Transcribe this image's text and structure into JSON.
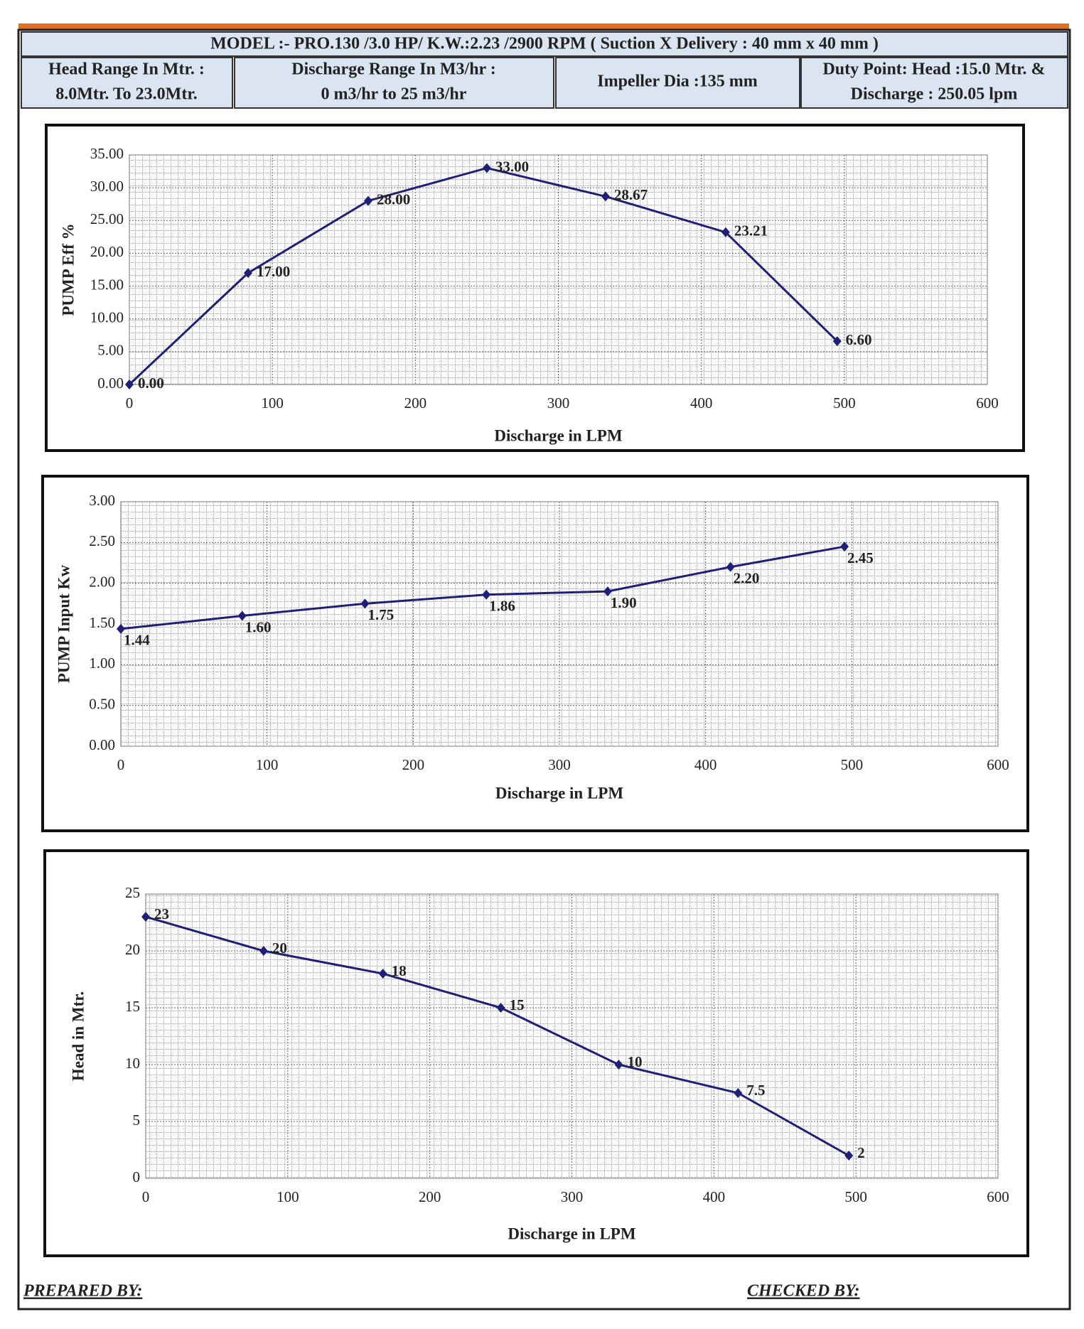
{
  "header": {
    "model": "MODEL :- PRO.130 /3.0 HP/ K.W.:2.23 /2900 RPM ( Suction X Delivery : 40 mm x 40 mm )",
    "cells": [
      [
        "Head Range In Mtr. :",
        "8.0Mtr. To 23.0Mtr."
      ],
      [
        "Discharge Range In M3/hr :",
        "0 m3/hr to 25 m3/hr"
      ],
      [
        "Impeller Dia :135 mm"
      ],
      [
        "Duty Point: Head :15.0 Mtr. &",
        "Discharge : 250.05 lpm"
      ]
    ]
  },
  "chart_data": [
    {
      "type": "line",
      "x_label": "Discharge in LPM",
      "y_label": "PUMP Eff %",
      "color": "#1f1f78",
      "x": [
        0,
        83,
        167,
        250,
        333,
        417,
        495
      ],
      "values": [
        0,
        17,
        28,
        33,
        28.67,
        23.21,
        6.6
      ],
      "value_labels": [
        "0.00",
        "17.00",
        "28.00",
        "33.00",
        "28.67",
        "23.21",
        "6.60"
      ],
      "xlim": [
        0,
        600
      ],
      "xticks": [
        0,
        100,
        200,
        300,
        400,
        500,
        600
      ],
      "ylim": [
        0,
        35
      ],
      "yticks": [
        {
          "value": 0,
          "label": "0.00"
        },
        {
          "value": 5,
          "label": "5.00"
        },
        {
          "value": 10,
          "label": "10.00"
        },
        {
          "value": 15,
          "label": "15.00"
        },
        {
          "value": 20,
          "label": "20.00"
        },
        {
          "value": 25,
          "label": "25.00"
        },
        {
          "value": 30,
          "label": "30.00"
        },
        {
          "value": 35,
          "label": "35.00"
        }
      ],
      "grid": true
    },
    {
      "type": "line",
      "x_label": "Discharge in LPM",
      "y_label": "PUMP  Input Kw",
      "color": "#1f1f78",
      "x": [
        0,
        83,
        167,
        250,
        333,
        417,
        495
      ],
      "values": [
        1.44,
        1.6,
        1.75,
        1.86,
        1.9,
        2.2,
        2.45
      ],
      "value_labels": [
        "1.44",
        "1.60",
        "1.75",
        "1.86",
        "1.90",
        "2.20",
        "2.45"
      ],
      "xlim": [
        0,
        600
      ],
      "xticks": [
        0,
        100,
        200,
        300,
        400,
        500,
        600
      ],
      "ylim": [
        0,
        3
      ],
      "yticks": [
        {
          "value": 0,
          "label": "0.00"
        },
        {
          "value": 0.5,
          "label": "0.50"
        },
        {
          "value": 1,
          "label": "1.00"
        },
        {
          "value": 1.5,
          "label": "1.50"
        },
        {
          "value": 2,
          "label": "2.00"
        },
        {
          "value": 2.5,
          "label": "2.50"
        },
        {
          "value": 3,
          "label": "3.00"
        }
      ],
      "grid": true
    },
    {
      "type": "line",
      "x_label": "Discharge in LPM",
      "y_label": "Head in Mtr.",
      "color": "#1f1f78",
      "x": [
        0,
        83,
        167,
        250,
        333,
        417,
        495
      ],
      "values": [
        23,
        20,
        18,
        15,
        10,
        7.5,
        2
      ],
      "xlim": [
        0,
        600
      ],
      "xticks": [
        0,
        100,
        200,
        300,
        400,
        500,
        600
      ],
      "ylim": [
        0,
        25
      ],
      "yticks": [
        0,
        5,
        10,
        15,
        20,
        25
      ],
      "grid": true
    }
  ],
  "footer": {
    "prepared": "PREPARED BY:",
    "checked": "CHECKED BY:"
  }
}
